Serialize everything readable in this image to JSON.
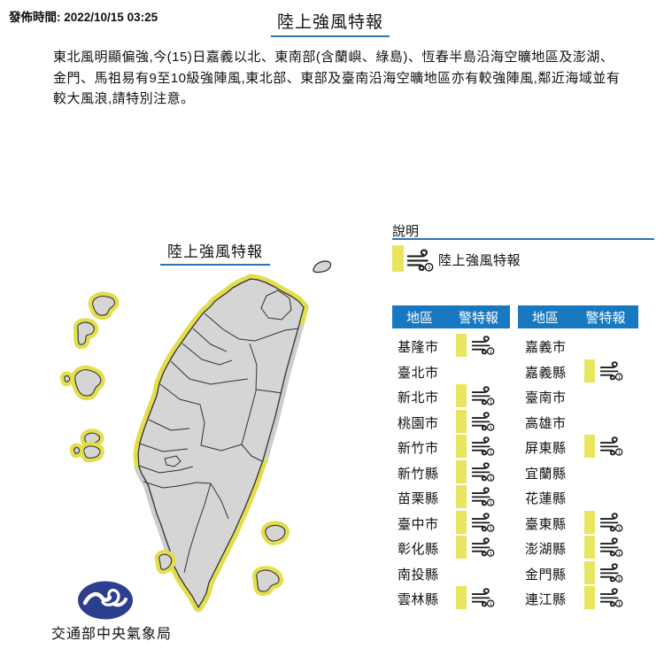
{
  "page": {
    "published": "發佈時間: 2022/10/15 03:25",
    "title": "陸上強風特報"
  },
  "advisory_text": "東北風明顯偏強,今(15)日嘉義以北、東南部(含蘭嶼、綠島)、恆春半島沿海空曠地區及澎湖、金門、馬祖易有9至10級強陣風,東北部、東部及臺南沿海空曠地區亦有較強陣風,鄰近海域並有較大風浪,請特別注意。",
  "map": {
    "title": "陸上強風特報",
    "agency": "交通部中央氣象局"
  },
  "legend": {
    "title": "說明",
    "item_label": "陸上強風特報",
    "item_icon": "wind-icon-level-1"
  },
  "tables": [
    {
      "headers": {
        "region": "地區",
        "warning": "警特報"
      },
      "rows": [
        {
          "region": "基隆市",
          "warning": true
        },
        {
          "region": "臺北市",
          "warning": false
        },
        {
          "region": "新北市",
          "warning": true
        },
        {
          "region": "桃園市",
          "warning": true
        },
        {
          "region": "新竹市",
          "warning": true
        },
        {
          "region": "新竹縣",
          "warning": true
        },
        {
          "region": "苗栗縣",
          "warning": true
        },
        {
          "region": "臺中市",
          "warning": true
        },
        {
          "region": "彰化縣",
          "warning": true
        },
        {
          "region": "南投縣",
          "warning": false
        },
        {
          "region": "雲林縣",
          "warning": true
        }
      ]
    },
    {
      "headers": {
        "region": "地區",
        "warning": "警特報"
      },
      "rows": [
        {
          "region": "嘉義市",
          "warning": false
        },
        {
          "region": "嘉義縣",
          "warning": true
        },
        {
          "region": "臺南市",
          "warning": false
        },
        {
          "region": "高雄市",
          "warning": false
        },
        {
          "region": "屏東縣",
          "warning": true
        },
        {
          "region": "宜蘭縣",
          "warning": false
        },
        {
          "region": "花蓮縣",
          "warning": false
        },
        {
          "region": "臺東縣",
          "warning": true
        },
        {
          "region": "澎湖縣",
          "warning": true
        },
        {
          "region": "金門縣",
          "warning": true
        },
        {
          "region": "連江縣",
          "warning": true
        }
      ]
    }
  ],
  "colors": {
    "header_blue": "#1879c0",
    "underline_blue": "#2e74b5",
    "warning_yellow": "#e9e55e",
    "map_yellow": "#e2de4e",
    "island_gray": "#d5d5d5",
    "island_outline": "#333333",
    "nowarn_gray": "#cdcdcd",
    "logo_navy": "#2c3f8e",
    "text_black": "#111111"
  }
}
